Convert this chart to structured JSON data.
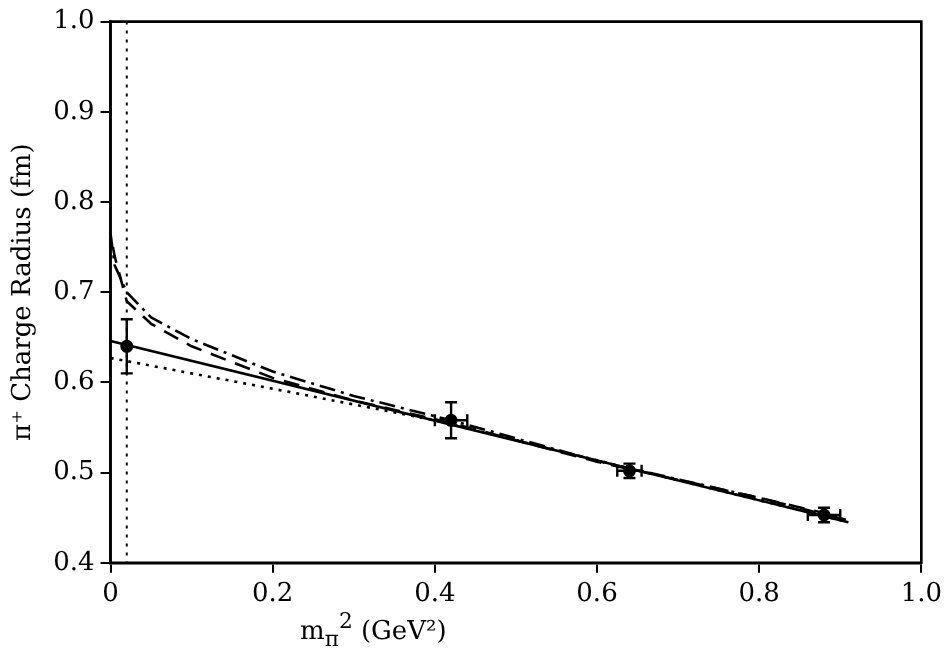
{
  "chart_data": {
    "type": "scatter",
    "xlabel": "m$_{π}$$^{2}$  (GeV²)",
    "ylabel": "π⁺ Charge Radius (fm)",
    "xlim": [
      0,
      1.0
    ],
    "ylim": [
      0.4,
      1.0
    ],
    "xticks": [
      0,
      0.2,
      0.4,
      0.6,
      0.8,
      {
        "value": 1.0,
        "label": "1.0"
      }
    ],
    "yticks": [
      0.4,
      0.5,
      0.6,
      0.7,
      0.8,
      0.9,
      {
        "value": 1.0,
        "label": "1.0"
      }
    ],
    "grid": false,
    "legend": false,
    "ref_lines": [
      {
        "axis": "x",
        "value": 0.02,
        "line_style": "dotted",
        "color": "#000000"
      }
    ],
    "series": [
      {
        "type": "scatter",
        "color": "#000000",
        "marker": "circle",
        "x": [
          0.02,
          0.42,
          0.64,
          0.88
        ],
        "values": [
          0.64,
          0.558,
          0.502,
          0.453
        ],
        "errors": [
          0.03,
          0.02,
          0.008,
          0.008
        ],
        "xerrors": [
          null,
          0.02,
          0.015,
          0.02
        ]
      },
      {
        "type": "line",
        "color": "#000000",
        "marker": "none",
        "line_style": "solid",
        "x": [
          0,
          0.91
        ],
        "values": [
          0.646,
          0.445
        ]
      },
      {
        "type": "line",
        "color": "#000000",
        "marker": "none",
        "line_style": "dotted",
        "x": [
          0,
          0.2,
          0.4,
          0.91
        ],
        "values": [
          0.627,
          0.593,
          0.558,
          0.445
        ]
      },
      {
        "type": "line",
        "color": "#000000",
        "marker": "none",
        "line_style": "dashed",
        "x": [
          0.003,
          0.005,
          0.02,
          0.05,
          0.1,
          0.2,
          0.3,
          0.42,
          0.6,
          0.8,
          0.9
        ],
        "values": [
          0.75,
          0.74,
          0.69,
          0.665,
          0.64,
          0.605,
          0.58,
          0.555,
          0.512,
          0.472,
          0.451
        ]
      },
      {
        "type": "line",
        "color": "#000000",
        "marker": "none",
        "line_style": "dashdot",
        "x": [
          0,
          0.005,
          0.02,
          0.05,
          0.1,
          0.2,
          0.3,
          0.42,
          0.6,
          0.8,
          0.91
        ],
        "values": [
          0.765,
          0.73,
          0.7,
          0.672,
          0.648,
          0.612,
          0.585,
          0.558,
          0.513,
          0.472,
          0.447
        ]
      }
    ]
  }
}
